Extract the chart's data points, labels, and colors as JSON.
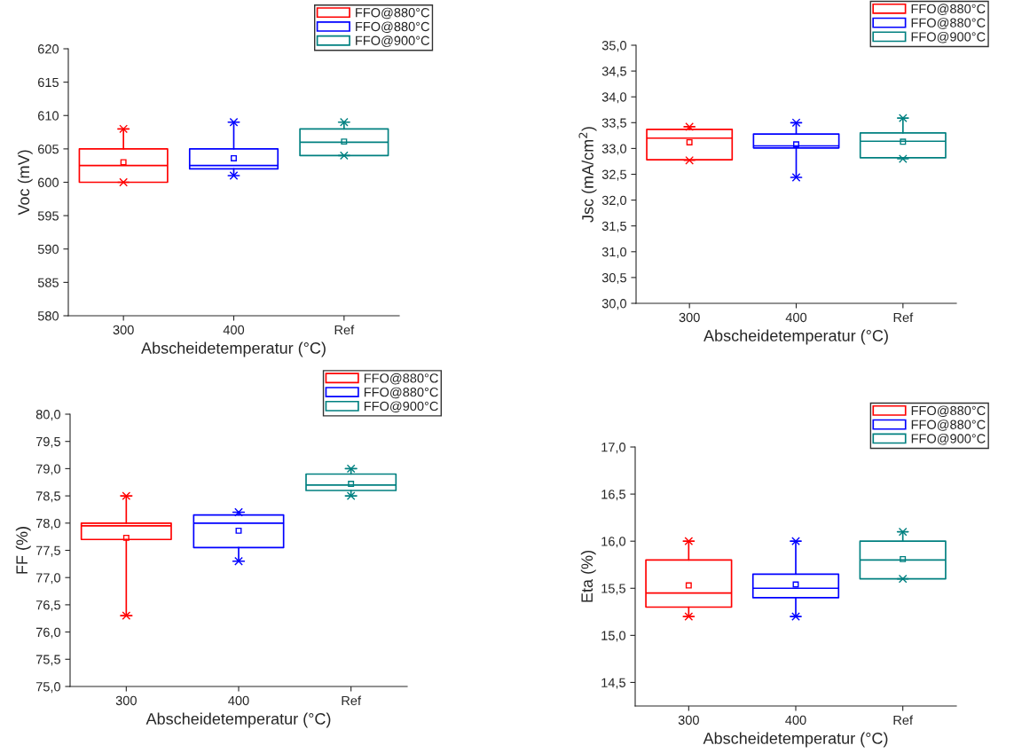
{
  "chart_data": [
    {
      "type": "box",
      "xlabel": "Abscheidetemperatur (°C)",
      "ylabel": "Voc (mV)",
      "categories": [
        "300",
        "400",
        "Ref"
      ],
      "ylim": [
        580,
        620
      ],
      "yticks": [
        580,
        585,
        590,
        595,
        600,
        605,
        610,
        615,
        620
      ],
      "legend": "top right",
      "grid": false,
      "marker": "cross",
      "series": [
        {
          "name": "FFO@880°C",
          "color": "#ff0000",
          "boxes": [
            {
              "low": 600,
              "q1": 600,
              "median": 602.5,
              "q3": 605,
              "high": 608,
              "mean": 603,
              "outliers": [
                600,
                608
              ]
            },
            null,
            null
          ]
        },
        {
          "name": "FFO@880°C",
          "color": "#0000ff",
          "boxes": [
            null,
            {
              "low": 601,
              "q1": 602,
              "median": 602.5,
              "q3": 605,
              "high": 609,
              "mean": 603.6,
              "outliers": [
                601,
                609
              ]
            },
            null
          ]
        },
        {
          "name": "FFO@900°C",
          "color": "#008080",
          "boxes": [
            null,
            null,
            {
              "low": 604,
              "q1": 604,
              "median": 606,
              "q3": 608,
              "high": 609,
              "mean": 606.1,
              "outliers": [
                604,
                609
              ]
            }
          ]
        }
      ]
    },
    {
      "type": "box",
      "xlabel": "Abscheidetemperatur (°C)",
      "ylabel": "Jsc (mA/cm$^{2}$)",
      "categories": [
        "300",
        "400",
        "Ref"
      ],
      "ylim": [
        30,
        35
      ],
      "yticks": [
        {
          "value": 30,
          "label": "30,0"
        },
        {
          "value": 30.5,
          "label": "30,5"
        },
        {
          "value": 31,
          "label": "31,0"
        },
        {
          "value": 31.5,
          "label": "31,5"
        },
        {
          "value": 32,
          "label": "32,0"
        },
        {
          "value": 32.5,
          "label": "32,5"
        },
        {
          "value": 33,
          "label": "33,0"
        },
        {
          "value": 33.5,
          "label": "33,5"
        },
        {
          "value": 34,
          "label": "34,0"
        },
        {
          "value": 34.5,
          "label": "34,5"
        },
        {
          "value": 35,
          "label": "35,0"
        }
      ],
      "legend": "top right",
      "grid": false,
      "marker": "cross",
      "series": [
        {
          "name": "FFO@880°C",
          "color": "#ff0000",
          "boxes": [
            {
              "low": 32.77,
              "q1": 32.78,
              "median": 33.2,
              "q3": 33.37,
              "high": 33.42,
              "mean": 33.12,
              "outliers": [
                32.77,
                33.42
              ]
            },
            null,
            null
          ]
        },
        {
          "name": "FFO@880°C",
          "color": "#0000ff",
          "boxes": [
            null,
            {
              "low": 32.44,
              "q1": 33.01,
              "median": 33.05,
              "q3": 33.28,
              "high": 33.5,
              "mean": 33.08,
              "outliers": [
                32.44,
                33.5
              ]
            },
            null
          ]
        },
        {
          "name": "FFO@900°C",
          "color": "#008080",
          "boxes": [
            null,
            null,
            {
              "low": 32.8,
              "q1": 32.82,
              "median": 33.14,
              "q3": 33.3,
              "high": 33.59,
              "mean": 33.13,
              "outliers": [
                32.8,
                33.59
              ]
            }
          ]
        }
      ]
    },
    {
      "type": "box",
      "xlabel": "Abscheidetemperatur (°C)",
      "ylabel": "FF (%)",
      "categories": [
        "300",
        "400",
        "Ref"
      ],
      "ylim": [
        75,
        80
      ],
      "yticks": [
        {
          "value": 75,
          "label": "75,0"
        },
        {
          "value": 75.5,
          "label": "75,5"
        },
        {
          "value": 76,
          "label": "76,0"
        },
        {
          "value": 76.5,
          "label": "76,5"
        },
        {
          "value": 77,
          "label": "77,0"
        },
        {
          "value": 77.5,
          "label": "77,5"
        },
        {
          "value": 78,
          "label": "78,0"
        },
        {
          "value": 78.5,
          "label": "78,5"
        },
        {
          "value": 79,
          "label": "79,0"
        },
        {
          "value": 79.5,
          "label": "79,5"
        },
        {
          "value": 80,
          "label": "80,0"
        }
      ],
      "legend": "top right",
      "grid": false,
      "marker": "cross",
      "series": [
        {
          "name": "FFO@880°C",
          "color": "#ff0000",
          "boxes": [
            {
              "low": 76.3,
              "q1": 77.7,
              "median": 77.95,
              "q3": 78.0,
              "high": 78.5,
              "mean": 77.73,
              "outliers": [
                76.3,
                78.5
              ]
            },
            null,
            null
          ]
        },
        {
          "name": "FFO@880°C",
          "color": "#0000ff",
          "boxes": [
            null,
            {
              "low": 77.3,
              "q1": 77.55,
              "median": 78.0,
              "q3": 78.15,
              "high": 78.2,
              "mean": 77.86,
              "outliers": [
                77.3,
                78.2
              ]
            },
            null
          ]
        },
        {
          "name": "FFO@900°C",
          "color": "#008080",
          "boxes": [
            null,
            null,
            {
              "low": 78.5,
              "q1": 78.6,
              "median": 78.7,
              "q3": 78.9,
              "high": 79.0,
              "mean": 78.72,
              "outliers": [
                78.5,
                79.0
              ]
            }
          ]
        }
      ]
    },
    {
      "type": "box",
      "xlabel": "Abscheidetemperatur (°C)",
      "ylabel": "Eta (%)",
      "categories": [
        "300",
        "400",
        "Ref"
      ],
      "ylim": [
        14.25,
        17
      ],
      "yticks": [
        {
          "value": 14.5,
          "label": "14,5"
        },
        {
          "value": 15,
          "label": "15,0"
        },
        {
          "value": 15.5,
          "label": "15,5"
        },
        {
          "value": 16,
          "label": "16,0"
        },
        {
          "value": 16.5,
          "label": "16,5"
        },
        {
          "value": 17,
          "label": "17,0"
        }
      ],
      "legend": "top right",
      "grid": false,
      "marker": "cross",
      "series": [
        {
          "name": "FFO@880°C",
          "color": "#ff0000",
          "boxes": [
            {
              "low": 15.2,
              "q1": 15.3,
              "median": 15.45,
              "q3": 15.8,
              "high": 16.0,
              "mean": 15.53,
              "outliers": [
                15.2,
                16.0
              ]
            },
            null,
            null
          ]
        },
        {
          "name": "FFO@880°C",
          "color": "#0000ff",
          "boxes": [
            null,
            {
              "low": 15.2,
              "q1": 15.4,
              "median": 15.5,
              "q3": 15.65,
              "high": 16.0,
              "mean": 15.54,
              "outliers": [
                15.2,
                16.0
              ]
            },
            null
          ]
        },
        {
          "name": "FFO@900°C",
          "color": "#008080",
          "boxes": [
            null,
            null,
            {
              "low": 15.6,
              "q1": 15.6,
              "median": 15.8,
              "q3": 16.0,
              "high": 16.1,
              "mean": 15.81,
              "outliers": [
                15.6,
                16.1
              ]
            }
          ]
        }
      ]
    }
  ]
}
